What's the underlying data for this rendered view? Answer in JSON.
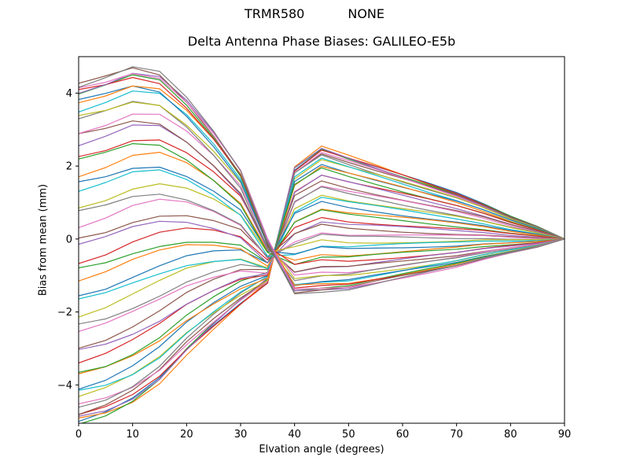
{
  "header": {
    "station": "TRMR580",
    "radome": "NONE"
  },
  "chart_data": {
    "type": "line",
    "suptitle": "TRMR580        NONE",
    "title": "Delta Antenna Phase Biases: GALILEO-E5b",
    "xlabel": "Elvation angle (degrees)",
    "ylabel": "Bias from mean (mm)",
    "xlim": [
      0,
      90
    ],
    "ylim": [
      -5.05,
      5.0
    ],
    "xticks": [
      0,
      10,
      20,
      30,
      40,
      50,
      60,
      70,
      80,
      90
    ],
    "yticks": [
      -4,
      -2,
      0,
      2,
      4
    ],
    "grid": false,
    "legend": "none",
    "x": [
      0,
      5,
      10,
      15,
      20,
      25,
      30,
      35,
      40,
      45,
      50,
      55,
      60,
      65,
      70,
      75,
      80,
      85,
      90
    ],
    "envelope_top": [
      4.2,
      4.4,
      4.65,
      4.5,
      3.8,
      2.9,
      1.85,
      -0.05,
      1.95,
      2.5,
      2.25,
      2.0,
      1.75,
      1.5,
      1.25,
      0.95,
      0.62,
      0.34,
      0.0
    ],
    "envelope_bottom": [
      -5.0,
      -4.8,
      -4.45,
      -3.9,
      -3.1,
      -2.4,
      -1.75,
      -1.15,
      -1.45,
      -1.4,
      -1.35,
      -1.2,
      -1.05,
      -0.9,
      -0.75,
      -0.55,
      -0.38,
      -0.22,
      0.0
    ],
    "envelope_center": [
      -0.4,
      -0.2,
      0.1,
      0.3,
      0.35,
      0.25,
      0.05,
      -0.6,
      0.25,
      0.55,
      0.45,
      0.4,
      0.35,
      0.3,
      0.25,
      0.2,
      0.12,
      0.06,
      0.0
    ],
    "envelope_halfwidth": [
      4.6,
      4.6,
      4.55,
      4.2,
      3.45,
      2.65,
      1.8,
      0.55,
      -1.7,
      -1.95,
      -1.8,
      -1.6,
      -1.4,
      -1.2,
      -1.0,
      -0.75,
      -0.5,
      -0.28,
      0.0
    ],
    "series_count": 48,
    "series_model": "Each of the 48 unlabeled curves i: t = sin(pi/2 * u), u uniform in [-1,1]; y(x) = envelope_center + t*envelope_halfwidth + wiggle.amplitude*(1-x/90)*sin(x*wiggle.freq + i*wiggle.phase_step). Sign change of halfwidth near x=37 reproduces the crossing knot at ~(-0.7 mm); all curves converge to 0 at 90 deg.",
    "wiggle": {
      "amplitude": 0.12,
      "freq": 0.11,
      "phase_step": 2.399
    },
    "colors": [
      "#1f77b4",
      "#ff7f0e",
      "#2ca02c",
      "#d62728",
      "#9467bd",
      "#8c564b",
      "#e377c2",
      "#7f7f7f",
      "#bcbd22",
      "#17becf"
    ],
    "frame_color": "#000000",
    "line_width": 1.2
  }
}
